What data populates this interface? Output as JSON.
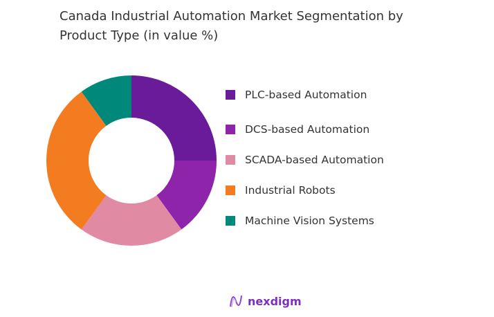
{
  "chart_data": {
    "type": "pie",
    "donut": true,
    "title": "Canada Industrial Automation Market Segmentation by Product Type (in value %)",
    "categories": [
      "PLC-based Automation",
      "DCS-based Automation",
      "SCADA-based Automation",
      "Industrial Robots",
      "Machine Vision Systems"
    ],
    "values": [
      25,
      15,
      20,
      30,
      10
    ],
    "colors": [
      "#6a1b9a",
      "#8e24aa",
      "#e08aa3",
      "#f47c20",
      "#00897b"
    ],
    "legend_position": "right"
  },
  "brand": {
    "name": "nexdigm",
    "color": "#7b2fbf"
  }
}
